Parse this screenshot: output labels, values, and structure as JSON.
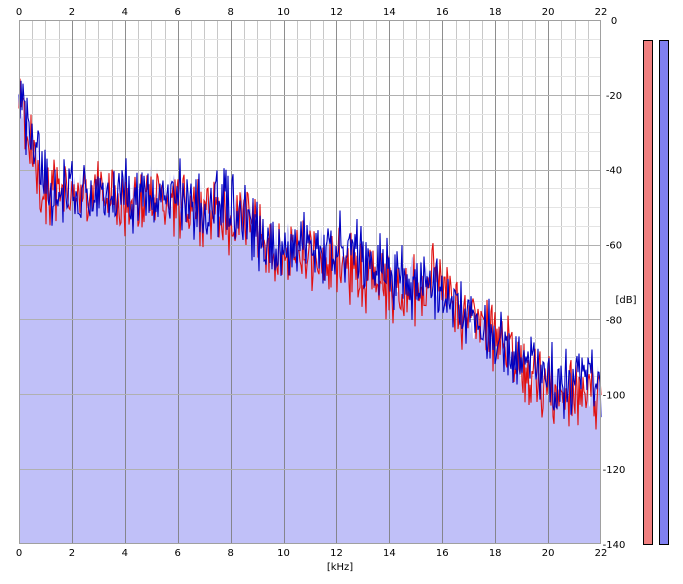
{
  "chart_data": {
    "type": "area",
    "xlabel": "[kHz]",
    "ylabel": "[dB]",
    "xlim": [
      0,
      22
    ],
    "ylim": [
      -140,
      0
    ],
    "x_ticks": [
      0,
      2,
      4,
      6,
      8,
      10,
      12,
      14,
      16,
      18,
      20,
      22
    ],
    "y_ticks": [
      0,
      -20,
      -40,
      -60,
      -80,
      -100,
      -120,
      -140
    ],
    "grid": true,
    "colors": {
      "fill": "#c0c0f8",
      "left_channel": "#e01010",
      "right_channel": "#0000c0",
      "major_grid": "#7a7a7a",
      "minor_grid": "#c8c8c8",
      "left_meter": "#f08080",
      "right_meter": "#8080f0"
    },
    "series": [
      {
        "color": "#e01010",
        "x": [
          0.0,
          0.1,
          0.25,
          0.5,
          0.75,
          1.0,
          1.5,
          2.0,
          2.5,
          3.0,
          3.5,
          4.0,
          4.5,
          5.0,
          5.5,
          6.0,
          6.5,
          7.0,
          7.5,
          8.0,
          8.5,
          9.0,
          9.5,
          10.0,
          10.5,
          11.0,
          11.5,
          12.0,
          12.5,
          13.0,
          13.5,
          14.0,
          14.5,
          15.0,
          15.5,
          16.0,
          16.5,
          17.0,
          17.5,
          18.0,
          18.5,
          19.0,
          19.5,
          20.0,
          20.5,
          21.0,
          21.5,
          22.0
        ],
        "values": [
          -20,
          -24,
          -28,
          -35,
          -40,
          -46,
          -47,
          -46,
          -47,
          -44,
          -48,
          -49,
          -49,
          -46,
          -49,
          -48,
          -51,
          -50,
          -51,
          -54,
          -51,
          -56,
          -61,
          -61,
          -63,
          -64,
          -67,
          -63,
          -67,
          -70,
          -68,
          -72,
          -72,
          -73,
          -69,
          -70,
          -76,
          -80,
          -80,
          -84,
          -88,
          -94,
          -96,
          -98,
          -98,
          -99,
          -98,
          -101
        ]
      },
      {
        "color": "#0000c0",
        "x": [
          0.0,
          0.1,
          0.25,
          0.5,
          0.75,
          1.0,
          1.5,
          2.0,
          2.5,
          3.0,
          3.5,
          4.0,
          4.5,
          5.0,
          5.5,
          6.0,
          6.5,
          7.0,
          7.5,
          8.0,
          8.5,
          9.0,
          9.5,
          10.0,
          10.5,
          11.0,
          11.5,
          12.0,
          12.5,
          13.0,
          13.5,
          14.0,
          14.5,
          15.0,
          15.5,
          16.0,
          16.5,
          17.0,
          17.5,
          18.0,
          18.5,
          19.0,
          19.5,
          20.0,
          20.5,
          21.0,
          21.5,
          22.0
        ],
        "values": [
          -18,
          -22,
          -27,
          -33,
          -38,
          -44,
          -47,
          -46,
          -48,
          -45,
          -47,
          -47,
          -47,
          -44,
          -47,
          -46,
          -49,
          -49,
          -48,
          -50,
          -52,
          -58,
          -63,
          -60,
          -58,
          -60,
          -60,
          -61,
          -62,
          -63,
          -67,
          -67,
          -69,
          -70,
          -70,
          -73,
          -76,
          -79,
          -81,
          -85,
          -89,
          -92,
          -94,
          -96,
          -97,
          -98,
          -97,
          -98
        ]
      }
    ],
    "spectrum_fill_top": [
      -18,
      -22,
      -27,
      -33,
      -38,
      -44,
      -47,
      -46,
      -47,
      -44,
      -47,
      -47,
      -47,
      -44,
      -47,
      -46,
      -49,
      -49,
      -48,
      -50,
      -51,
      -56,
      -61,
      -60,
      -58,
      -60,
      -60,
      -61,
      -62,
      -63,
      -67,
      -67,
      -69,
      -70,
      -69,
      -70,
      -76,
      -79,
      -80,
      -84,
      -88,
      -92,
      -94,
      -96,
      -97,
      -98,
      -97,
      -98
    ],
    "level_meters": [
      {
        "channel": "left",
        "level": 1.0
      },
      {
        "channel": "right",
        "level": 1.0
      }
    ]
  }
}
